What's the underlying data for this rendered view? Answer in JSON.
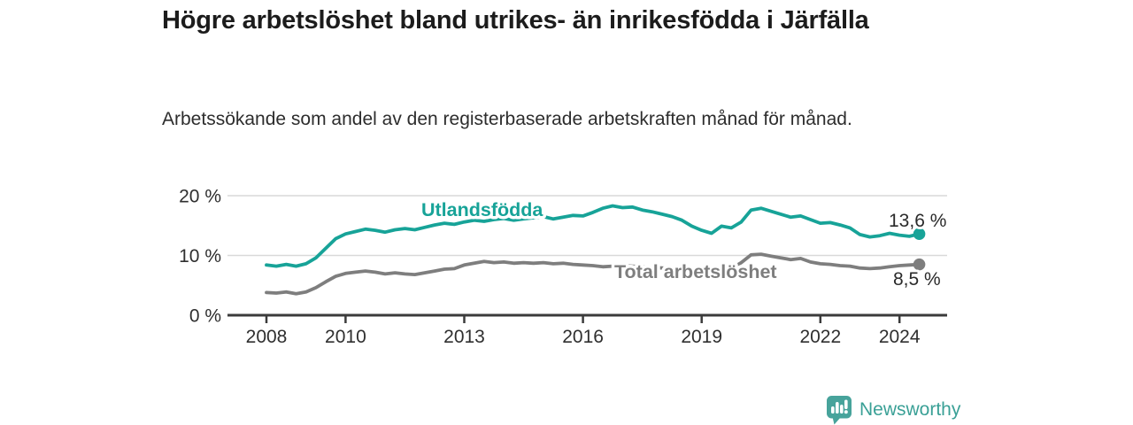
{
  "title": "Högre arbetslöshet bland utrikes- än inrikesfödda i Järfälla",
  "subtitle": "Arbetssökande som andel av den registerbaserade arbetskraften månad för månad.",
  "branding": {
    "logo_text": "Newsworthy",
    "logo_icon": "bar-chart-speech-bubble-icon"
  },
  "colors": {
    "accent_teal": "#17a398",
    "series_total_gray": "#7e7e7e",
    "grid": "#d9d9d9",
    "axis": "#3b3b3b",
    "tick_text": "#2f2f2f",
    "value_text": "#2a2a2a",
    "logo_teal": "#47a39b"
  },
  "chart_data": {
    "type": "line",
    "title": "Högre arbetslöshet bland utrikes- än inrikesfödda i Järfälla",
    "subtitle": "Arbetssökande som andel av den registerbaserade arbetskraften månad för månad.",
    "xlabel": "",
    "ylabel": "",
    "ylim": [
      0,
      20
    ],
    "xlim": [
      2008,
      2025
    ],
    "grid": "horizontal",
    "legend_position": "inline-labels",
    "y_ticks": [
      {
        "value": 0,
        "label": "0 %"
      },
      {
        "value": 10,
        "label": "10 %"
      },
      {
        "value": 20,
        "label": "20 %"
      }
    ],
    "x_ticks": [
      {
        "value": 2008,
        "label": "2008"
      },
      {
        "value": 2010,
        "label": "2010"
      },
      {
        "value": 2013,
        "label": "2013"
      },
      {
        "value": 2016,
        "label": "2016"
      },
      {
        "value": 2019,
        "label": "2019"
      },
      {
        "value": 2022,
        "label": "2022"
      },
      {
        "value": 2024,
        "label": "2024"
      }
    ],
    "x": [
      2008,
      2008.25,
      2008.5,
      2008.75,
      2009,
      2009.25,
      2009.5,
      2009.75,
      2010,
      2010.25,
      2010.5,
      2010.75,
      2011,
      2011.25,
      2011.5,
      2011.75,
      2012,
      2012.25,
      2012.5,
      2012.75,
      2013,
      2013.25,
      2013.5,
      2013.75,
      2014,
      2014.25,
      2014.5,
      2014.75,
      2015,
      2015.25,
      2015.5,
      2015.75,
      2016,
      2016.25,
      2016.5,
      2016.75,
      2017,
      2017.25,
      2017.5,
      2017.75,
      2018,
      2018.25,
      2018.5,
      2018.75,
      2019,
      2019.25,
      2019.5,
      2019.75,
      2020,
      2020.25,
      2020.5,
      2020.75,
      2021,
      2021.25,
      2021.5,
      2021.75,
      2022,
      2022.25,
      2022.5,
      2022.75,
      2023,
      2023.25,
      2023.5,
      2023.75,
      2024,
      2024.25,
      2024.5
    ],
    "series": [
      {
        "name": "Utlandsfödda",
        "color": "#17a398",
        "end_label": "13,6 %",
        "end_value": 13.6,
        "values": [
          8.4,
          8.2,
          8.5,
          8.2,
          8.6,
          9.6,
          11.2,
          12.8,
          13.6,
          14.0,
          14.4,
          14.2,
          13.9,
          14.3,
          14.5,
          14.3,
          14.7,
          15.1,
          15.4,
          15.2,
          15.6,
          15.9,
          15.7,
          16.0,
          16.2,
          15.9,
          16.1,
          16.3,
          16.5,
          16.1,
          16.4,
          16.7,
          16.6,
          17.2,
          17.9,
          18.3,
          18.0,
          18.1,
          17.6,
          17.3,
          16.9,
          16.5,
          15.9,
          14.9,
          14.2,
          13.7,
          14.9,
          14.6,
          15.6,
          17.6,
          17.9,
          17.4,
          16.9,
          16.4,
          16.6,
          16.0,
          15.4,
          15.5,
          15.1,
          14.6,
          13.5,
          13.1,
          13.3,
          13.7,
          13.4,
          13.2,
          13.6
        ]
      },
      {
        "name": "Total arbetslöshet",
        "color": "#7e7e7e",
        "end_label": "8,5 %",
        "end_value": 8.5,
        "values": [
          3.8,
          3.7,
          3.9,
          3.6,
          3.9,
          4.6,
          5.6,
          6.5,
          7.0,
          7.2,
          7.4,
          7.2,
          6.9,
          7.1,
          6.9,
          6.8,
          7.1,
          7.4,
          7.7,
          7.8,
          8.4,
          8.7,
          9.0,
          8.8,
          8.9,
          8.7,
          8.8,
          8.7,
          8.8,
          8.6,
          8.7,
          8.5,
          8.4,
          8.3,
          8.1,
          8.2,
          8.3,
          8.2,
          8.1,
          8.0,
          7.9,
          7.8,
          7.7,
          7.6,
          7.5,
          7.4,
          7.6,
          7.8,
          8.8,
          10.1,
          10.2,
          9.9,
          9.6,
          9.3,
          9.5,
          8.9,
          8.6,
          8.5,
          8.3,
          8.2,
          7.9,
          7.8,
          7.9,
          8.1,
          8.3,
          8.4,
          8.5
        ]
      }
    ]
  }
}
